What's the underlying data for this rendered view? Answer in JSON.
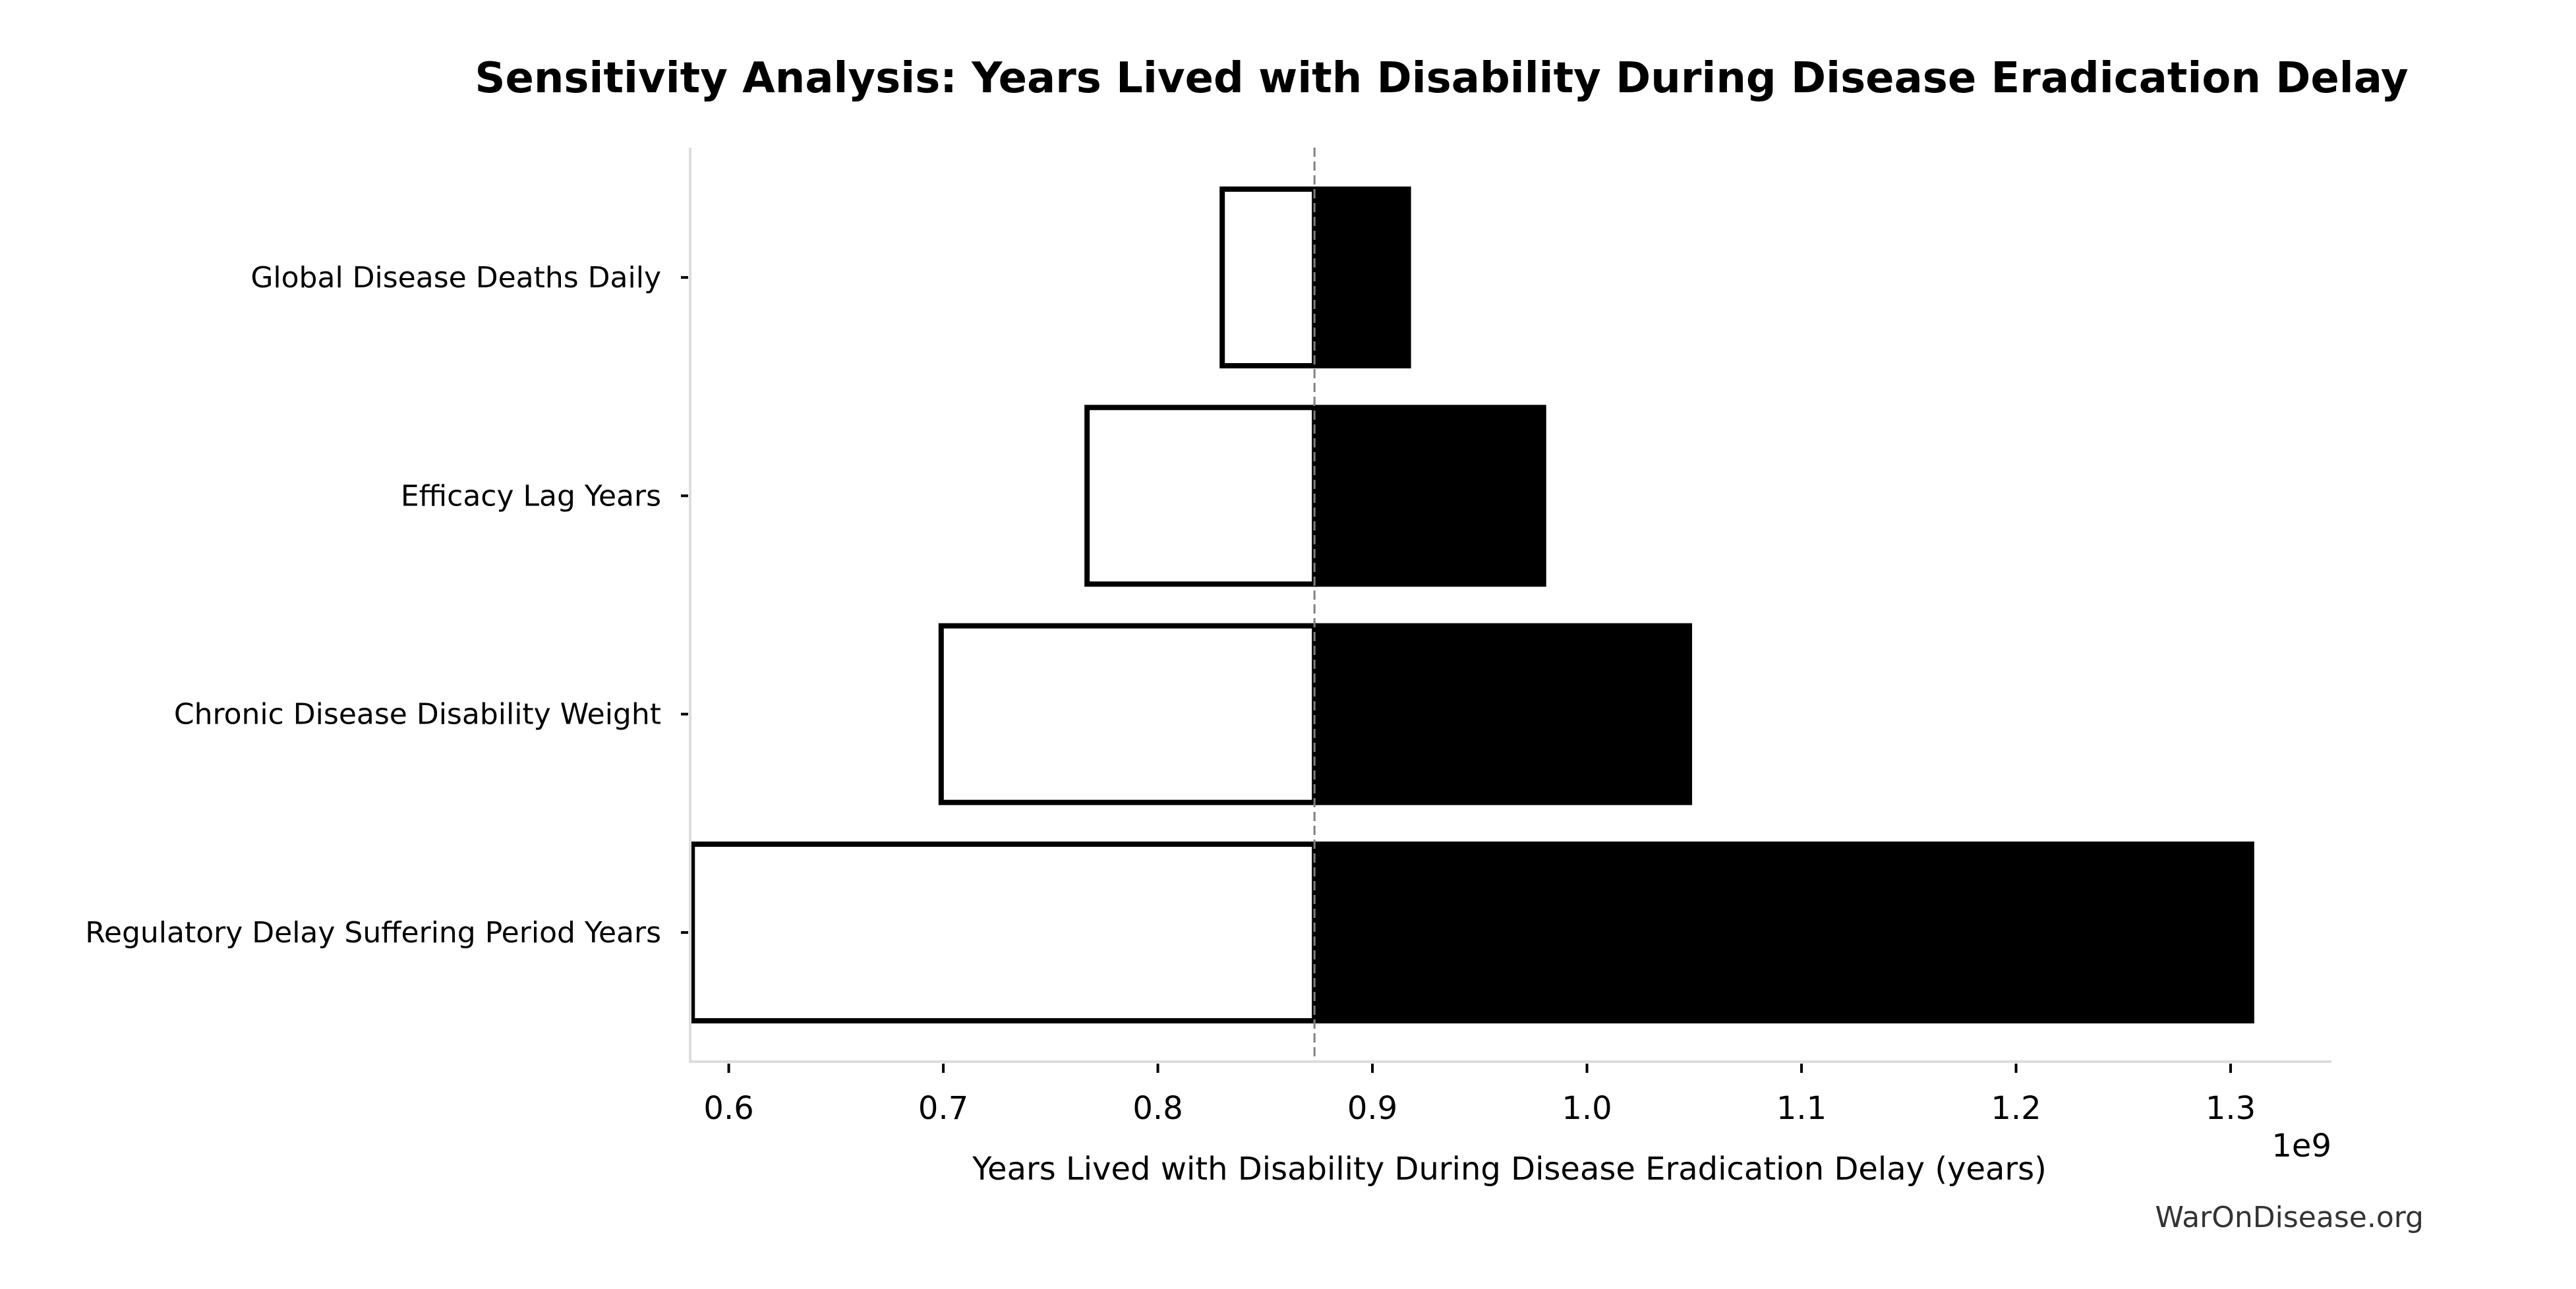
{
  "chart_data": {
    "type": "bar",
    "orientation": "horizontal",
    "subtype": "tornado",
    "title": "Sensitivity Analysis: Years Lived with Disability During Disease Eradication Delay",
    "xlabel": "Years Lived with Disability During Disease Eradication Delay (years)",
    "ylabel": "",
    "x_offset_label": "1e9",
    "x_multiplier": 1000000000,
    "xlim": [
      0.582,
      1.347
    ],
    "xticks": [
      0.6,
      0.7,
      0.8,
      0.9,
      1.0,
      1.1,
      1.2,
      1.3
    ],
    "xtick_labels": [
      "0.6",
      "0.7",
      "0.8",
      "0.9",
      "1.0",
      "1.1",
      "1.2",
      "1.3"
    ],
    "baseline": 0.873,
    "grid": false,
    "legend": null,
    "categories": [
      "Global Disease Deaths Daily",
      "Efficacy Lag Years",
      "Chronic Disease Disability Weight",
      "Regulatory Delay Suffering Period Years"
    ],
    "series": [
      {
        "name": "low",
        "style": "outlined",
        "values": [
          0.83,
          0.767,
          0.699,
          0.583
        ]
      },
      {
        "name": "high",
        "style": "filled",
        "values": [
          0.918,
          0.981,
          1.049,
          1.311
        ]
      }
    ],
    "colors": {
      "high_fill": "#000000",
      "low_fill": "#ffffff",
      "outline": "#000000",
      "baseline_line": "#808080",
      "spine": "#dddddd"
    }
  },
  "watermark": "WarOnDisease.org"
}
